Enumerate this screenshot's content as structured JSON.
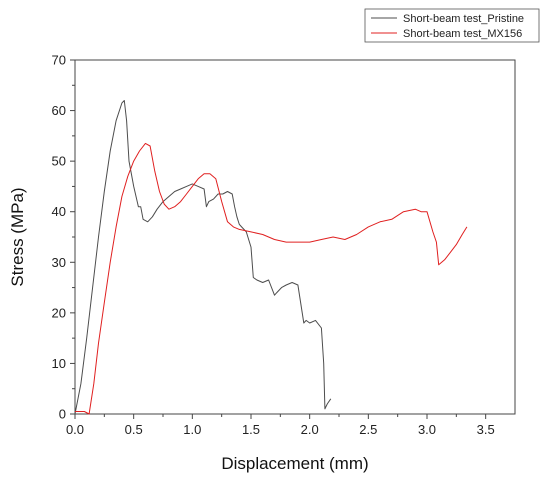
{
  "chart_data": {
    "type": "line",
    "title": "",
    "xlabel": "Displacement (mm)",
    "ylabel": "Stress (MPa)",
    "xlim": [
      0.0,
      3.75
    ],
    "ylim": [
      0,
      70
    ],
    "xticks": [
      "0.0",
      "0.5",
      "1.0",
      "1.5",
      "2.0",
      "2.5",
      "3.0",
      "3.5"
    ],
    "yticks": [
      "0",
      "10",
      "20",
      "30",
      "40",
      "50",
      "60",
      "70"
    ],
    "grid": false,
    "legend_position": "top-right",
    "series": [
      {
        "name": "Short-beam test_Pristine",
        "color": "#4d4d4d",
        "x": [
          0.0,
          0.05,
          0.1,
          0.15,
          0.2,
          0.25,
          0.3,
          0.35,
          0.4,
          0.42,
          0.44,
          0.46,
          0.5,
          0.54,
          0.56,
          0.58,
          0.62,
          0.66,
          0.7,
          0.75,
          0.8,
          0.85,
          0.9,
          0.95,
          1.0,
          1.05,
          1.1,
          1.12,
          1.14,
          1.18,
          1.22,
          1.26,
          1.3,
          1.34,
          1.36,
          1.38,
          1.4,
          1.42,
          1.46,
          1.5,
          1.52,
          1.55,
          1.6,
          1.65,
          1.7,
          1.72,
          1.76,
          1.8,
          1.85,
          1.9,
          1.95,
          1.97,
          2.0,
          2.05,
          2.1,
          2.12,
          2.13,
          2.15,
          2.18
        ],
        "y": [
          0,
          6,
          15,
          25,
          35,
          44,
          52,
          58,
          61.5,
          62,
          58,
          50,
          45,
          41,
          41,
          38.5,
          38,
          39,
          40.5,
          42,
          43,
          44,
          44.5,
          45,
          45.5,
          45,
          44.5,
          41,
          42,
          42.5,
          43.5,
          43.5,
          44,
          43.5,
          41,
          39,
          37.5,
          37,
          36,
          33,
          27,
          26.5,
          26,
          26.5,
          23.5,
          24,
          25,
          25.5,
          26,
          25.5,
          18,
          18.5,
          18,
          18.5,
          17,
          10,
          1,
          2,
          3
        ]
      },
      {
        "name": "Short-beam test_MX156",
        "color": "#e02020",
        "x": [
          0.0,
          0.08,
          0.12,
          0.16,
          0.2,
          0.25,
          0.3,
          0.35,
          0.4,
          0.45,
          0.5,
          0.55,
          0.6,
          0.64,
          0.68,
          0.72,
          0.76,
          0.8,
          0.85,
          0.9,
          0.95,
          1.0,
          1.05,
          1.1,
          1.15,
          1.2,
          1.25,
          1.3,
          1.35,
          1.4,
          1.5,
          1.6,
          1.7,
          1.8,
          1.9,
          2.0,
          2.1,
          2.2,
          2.3,
          2.4,
          2.5,
          2.6,
          2.7,
          2.8,
          2.9,
          2.95,
          3.0,
          3.05,
          3.08,
          3.1,
          3.15,
          3.2,
          3.25,
          3.3,
          3.34
        ],
        "y": [
          0.5,
          0.5,
          0,
          6,
          14,
          22,
          30,
          37,
          43,
          47,
          50,
          52,
          53.5,
          53,
          48,
          44,
          41.5,
          40.5,
          41,
          42,
          43.5,
          45,
          46.5,
          47.5,
          47.5,
          46.5,
          42,
          38,
          37,
          36.5,
          36,
          35.5,
          34.5,
          34,
          34,
          34,
          34.5,
          35,
          34.5,
          35.5,
          37,
          38,
          38.5,
          40,
          40.5,
          40,
          40,
          36,
          34,
          29.5,
          30.5,
          32,
          33.5,
          35.5,
          37
        ]
      }
    ]
  }
}
